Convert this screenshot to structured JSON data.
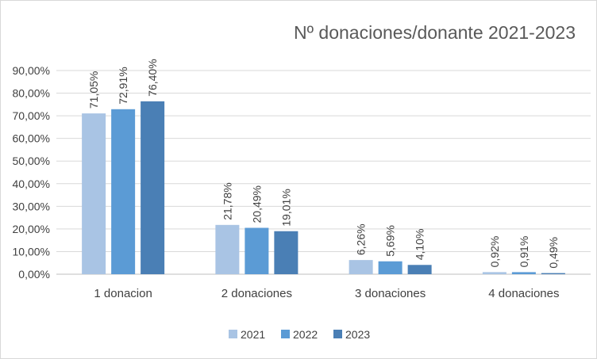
{
  "chart_data": {
    "type": "bar",
    "title": "Nº donaciones/donante 2021-2023",
    "xlabel": "",
    "ylabel": "",
    "categories": [
      "1 donacion",
      "2 donaciones",
      "3 donaciones",
      "4 donaciones"
    ],
    "series": [
      {
        "name": "2021",
        "color": "#a9c4e4",
        "values": [
          71.05,
          21.78,
          6.26,
          0.92
        ],
        "labels": [
          "71,05%",
          "21,78%",
          "6,26%",
          "0,92%"
        ]
      },
      {
        "name": "2022",
        "color": "#5b9bd5",
        "values": [
          72.91,
          20.49,
          5.69,
          0.91
        ],
        "labels": [
          "72,91%",
          "20,49%",
          "5,69%",
          "0,91%"
        ]
      },
      {
        "name": "2023",
        "color": "#4a7fb5",
        "values": [
          76.4,
          19.01,
          4.1,
          0.49
        ],
        "labels": [
          "76,40%",
          "19,01%",
          "4,10%",
          "0,49%"
        ]
      }
    ],
    "ylim": [
      0,
      90
    ],
    "yticks": [
      0,
      10,
      20,
      30,
      40,
      50,
      60,
      70,
      80,
      90
    ],
    "ytick_labels": [
      "0,00%",
      "10,00%",
      "20,00%",
      "30,00%",
      "40,00%",
      "50,00%",
      "60,00%",
      "70,00%",
      "80,00%",
      "90,00%"
    ],
    "grid": true,
    "legend_position": "bottom"
  }
}
